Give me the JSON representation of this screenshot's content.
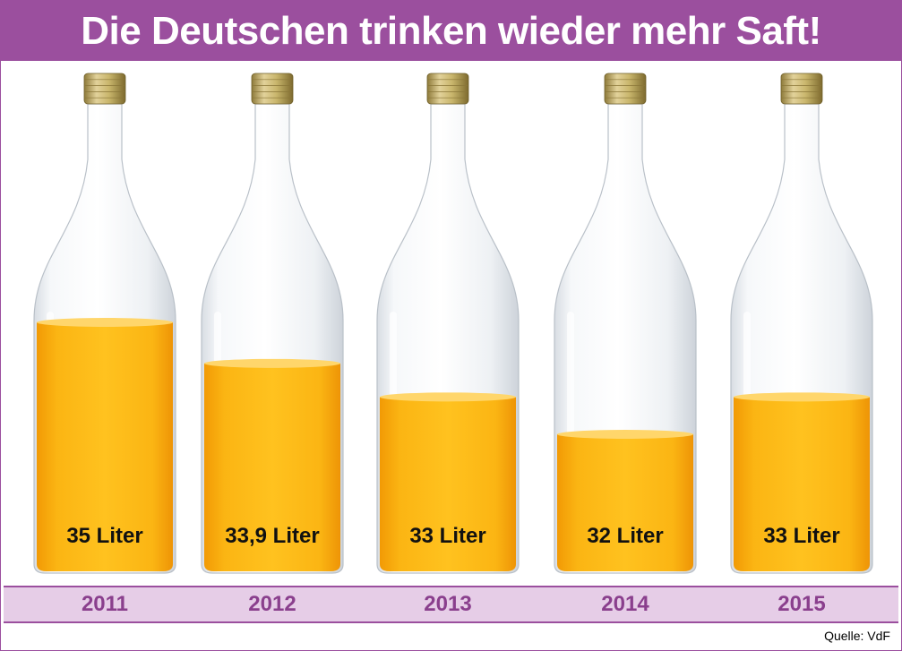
{
  "title": "Die Deutschen trinken wieder mehr Saft!",
  "source": "Quelle: VdF",
  "colors": {
    "accent": "#9b4f9e",
    "year_band": "#e6cde7",
    "juice": "#fbb513",
    "cap": "#c9b66c"
  },
  "chart_data": {
    "type": "bar",
    "title": "Die Deutschen trinken wieder mehr Saft!",
    "categories": [
      "2011",
      "2012",
      "2013",
      "2014",
      "2015"
    ],
    "values": [
      35,
      33.9,
      33,
      32,
      33
    ],
    "value_labels": [
      "35 Liter",
      "33,9 Liter",
      "33 Liter",
      "32 Liter",
      "33 Liter"
    ],
    "unit": "Liter",
    "xlabel": "",
    "ylabel": "",
    "grid": false,
    "legend": "none"
  }
}
